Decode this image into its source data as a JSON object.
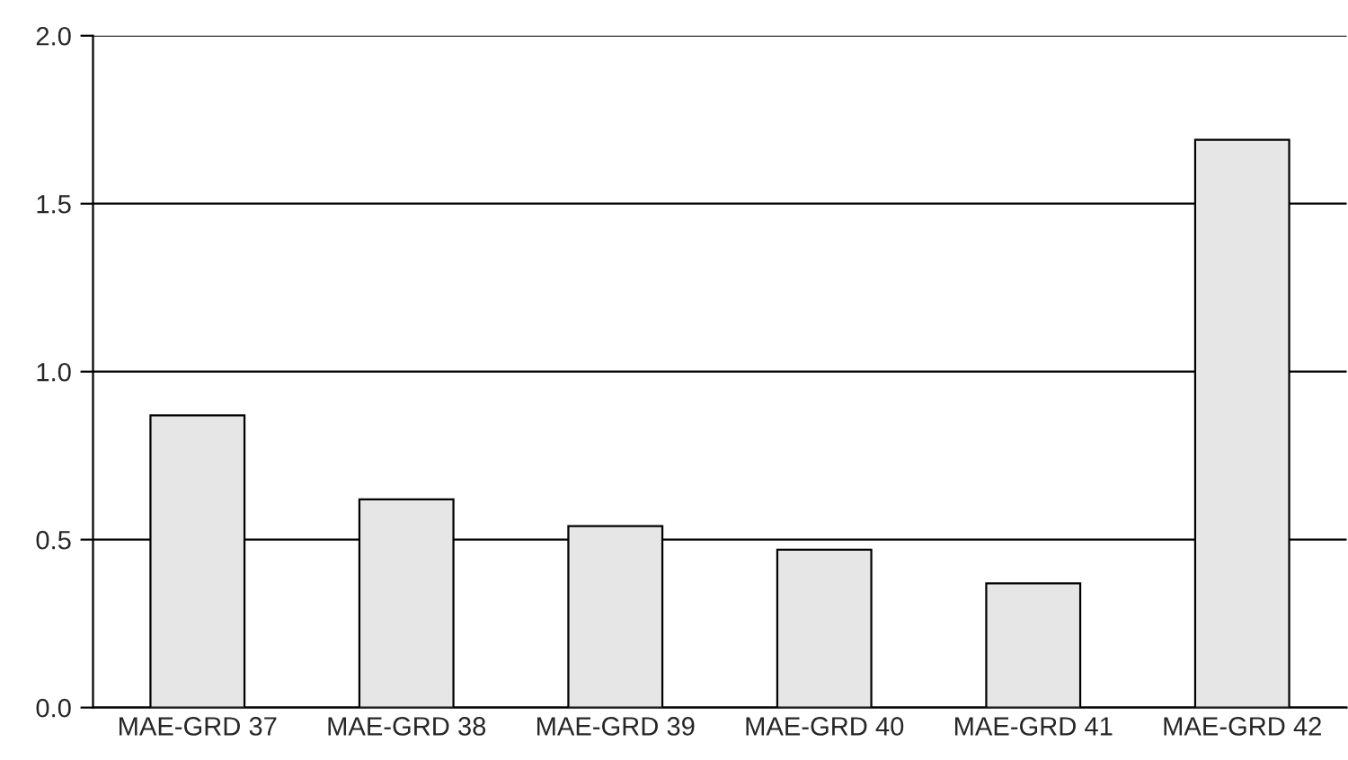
{
  "chart_data": {
    "type": "bar",
    "categories": [
      "MAE-GRD 37",
      "MAE-GRD 38",
      "MAE-GRD 39",
      "MAE-GRD 40",
      "MAE-GRD 41",
      "MAE-GRD 42"
    ],
    "values": [
      0.87,
      0.62,
      0.54,
      0.47,
      0.37,
      1.69
    ],
    "color": "#e6e6e6",
    "ylim": [
      0,
      2
    ],
    "yticks": [
      {
        "value": 0,
        "label": "0.0"
      },
      {
        "value": 0.5,
        "label": "0.5"
      },
      {
        "value": 1,
        "label": "1.0"
      },
      {
        "value": 1.5,
        "label": "1.5"
      },
      {
        "value": 2,
        "label": "2.0"
      }
    ],
    "grid": "y",
    "legend": false
  }
}
